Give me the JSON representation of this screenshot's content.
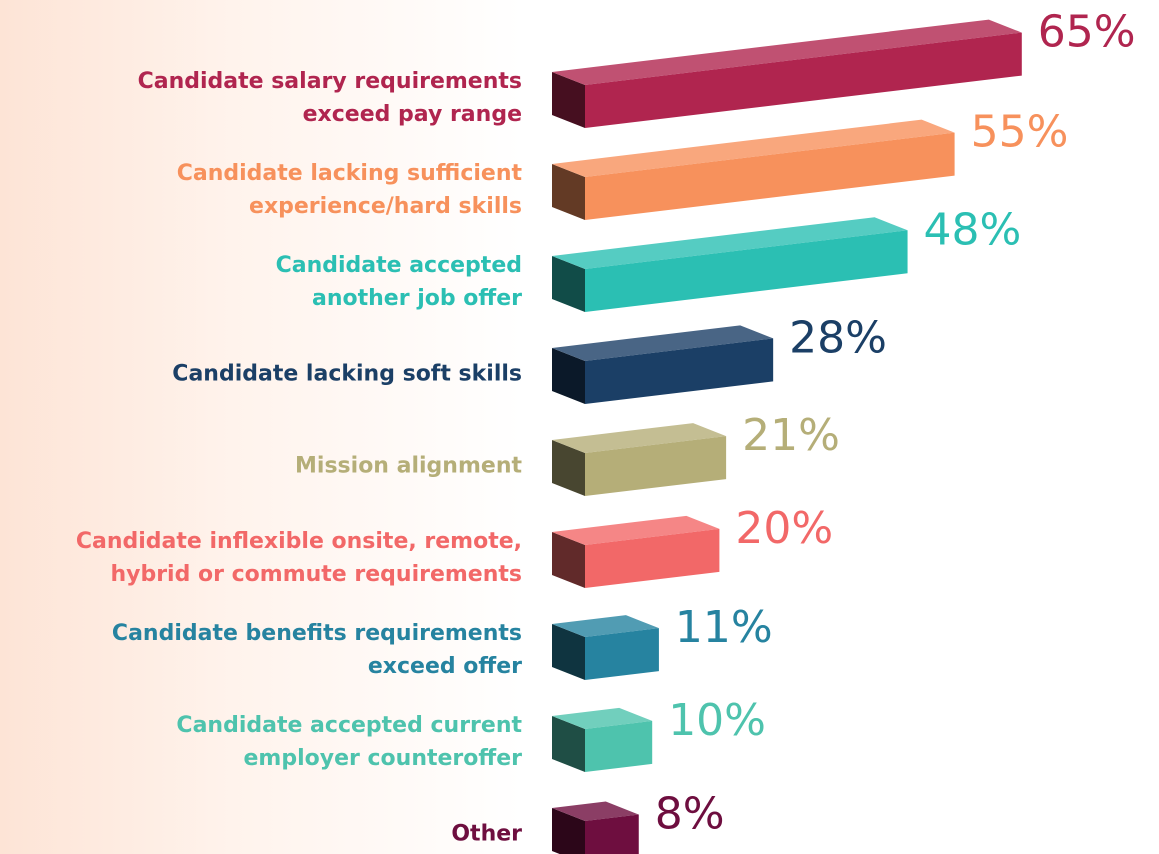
{
  "chart_data": {
    "type": "bar",
    "categories": [
      "Candidate salary requirements\nexceed pay range",
      "Candidate lacking sufficient\nexperience/hard skills",
      "Candidate accepted\nanother job offer",
      "Candidate lacking soft skills",
      "Mission alignment",
      "Candidate inflexible onsite, remote,\nhybrid or commute requirements",
      "Candidate benefits requirements\nexceed offer",
      "Candidate accepted current\nemployer counteroffer",
      "Other"
    ],
    "values": [
      65,
      55,
      48,
      28,
      21,
      20,
      11,
      10,
      8
    ],
    "value_labels": [
      "65%",
      "55%",
      "48%",
      "28%",
      "21%",
      "20%",
      "11%",
      "10%",
      "8%"
    ],
    "colors": [
      "#b0254f",
      "#f7915c",
      "#2bbfb3",
      "#1b3f66",
      "#b5ae78",
      "#f26868",
      "#2683a0",
      "#4ec3ad",
      "#6e0e3f"
    ]
  }
}
